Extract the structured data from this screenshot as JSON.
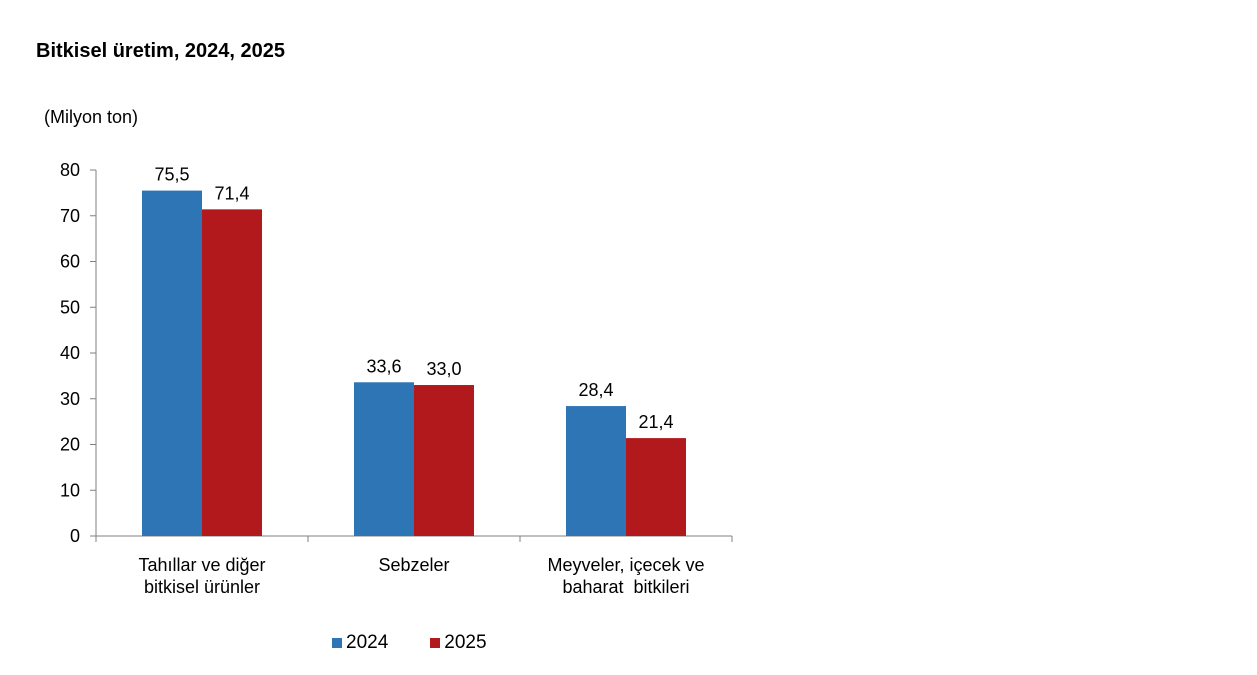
{
  "chart_data": {
    "type": "bar",
    "title": "Bitkisel üretim, 2024, 2025",
    "ylabel": "(Milyon ton)",
    "xlabel": "",
    "ylim": [
      0,
      80
    ],
    "yticks": [
      0,
      10,
      20,
      30,
      40,
      50,
      60,
      70,
      80
    ],
    "categories": [
      [
        "Tahıllar ve diğer",
        "bitkisel ürünler"
      ],
      [
        "Sebzeler"
      ],
      [
        "Meyveler, içecek ve",
        "baharat  bitkileri"
      ]
    ],
    "series": [
      {
        "name": "2024",
        "color": "#2e75b6",
        "values": [
          75.5,
          33.6,
          28.4
        ],
        "labels": [
          "75,5",
          "33,6",
          "28,4"
        ]
      },
      {
        "name": "2025",
        "color": "#b2191c",
        "values": [
          71.4,
          33.0,
          21.4
        ],
        "labels": [
          "71,4",
          "33,0",
          "21,4"
        ]
      }
    ],
    "grid": false,
    "legend_position": "bottom"
  }
}
